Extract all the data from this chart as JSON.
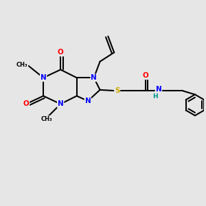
{
  "bg_color": "#e6e6e6",
  "atom_colors": {
    "N": "#0000ff",
    "O": "#ff0000",
    "S": "#ccaa00",
    "C": "#000000",
    "H": "#009090"
  },
  "bond_color": "#000000",
  "bond_width": 1.5
}
